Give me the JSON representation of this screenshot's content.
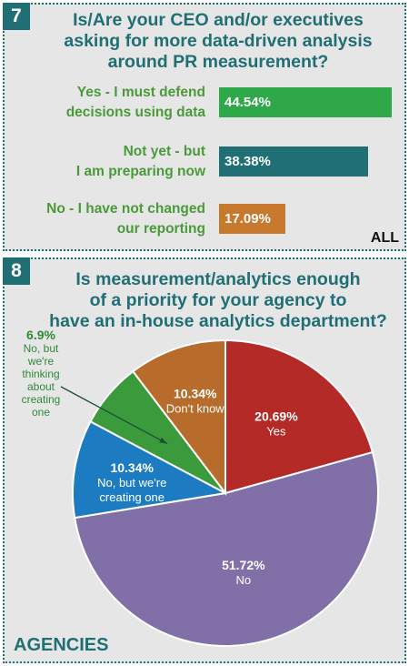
{
  "q7": {
    "number": "7",
    "title_lines": [
      "Is/Are your CEO and/or executives",
      "asking for more data-driven analysis",
      "around PR measurement?"
    ],
    "group": "ALL",
    "chart_data": {
      "type": "bar",
      "categories": [
        [
          "Yes - I must defend",
          "decisions using data"
        ],
        [
          "Not yet - but",
          "I am preparing now"
        ],
        [
          "No - I have not changed",
          "our reporting"
        ]
      ],
      "values": [
        44.54,
        38.38,
        17.09
      ],
      "value_labels": [
        "44.54%",
        "38.38%",
        "17.09%"
      ],
      "colors": [
        "#2fa84a",
        "#1f6f74",
        "#c77a2e"
      ]
    }
  },
  "q8": {
    "number": "8",
    "title_lines": [
      "Is measurement/analytics enough",
      "of a priority for your agency to",
      "have an in-house analytics department?"
    ],
    "group": "AGENCIES",
    "chart_data": {
      "type": "pie",
      "slices": [
        {
          "value": 20.69,
          "pct_label": "20.69%",
          "label_lines": [
            "Yes"
          ],
          "color": "#b42a26"
        },
        {
          "value": 51.72,
          "pct_label": "51.72%",
          "label_lines": [
            "No"
          ],
          "color": "#8170a7"
        },
        {
          "value": 10.34,
          "pct_label": "10.34%",
          "label_lines": [
            "No, but we're",
            "creating one"
          ],
          "color": "#1d7cc1"
        },
        {
          "value": 6.9,
          "pct_label": "6.9%",
          "label_lines": [
            "No, but",
            "we're",
            "thinking",
            "about",
            "creating",
            "one"
          ],
          "color": "#3a9a3c"
        },
        {
          "value": 10.34,
          "pct_label": "10.34%",
          "label_lines": [
            "Don't know"
          ],
          "color": "#b76c2c"
        }
      ]
    }
  }
}
